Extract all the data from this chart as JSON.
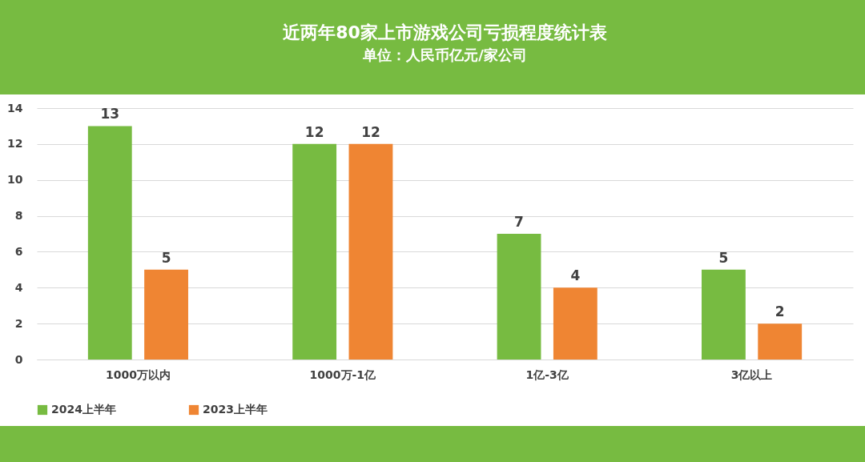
{
  "chart_data": {
    "type": "bar",
    "title": "近两年80家上市游戏公司亏损程度统计表",
    "subtitle": "单位：人民币亿元/家公司",
    "categories": [
      "1000万以内",
      "1000万-1亿",
      "1亿-3亿",
      "3亿以上"
    ],
    "series": [
      {
        "name": "2024上半年",
        "color": "#77bb41",
        "values": [
          13,
          12,
          7,
          5
        ]
      },
      {
        "name": "2023上半年",
        "color": "#ef8533",
        "values": [
          5,
          12,
          4,
          2
        ]
      }
    ],
    "ylim": [
      0,
      14
    ],
    "yticks": [
      0,
      2,
      4,
      6,
      8,
      10,
      12,
      14
    ],
    "grid": "y",
    "legend": "bottom",
    "data_labels": true
  }
}
